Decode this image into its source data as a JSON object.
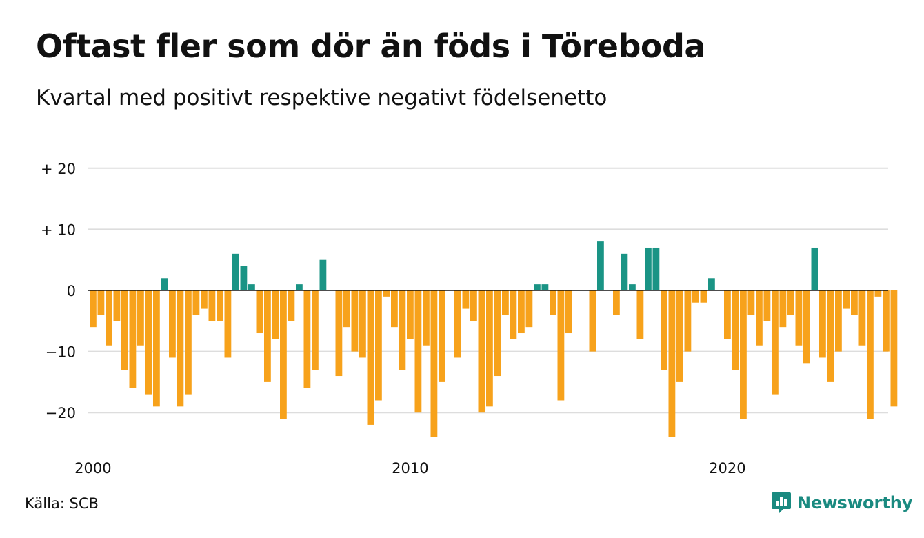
{
  "title": "Oftast fler som dör än föds i Töreboda",
  "subtitle": "Kvartal med positivt respektive negativt födelsenetto",
  "source": "Källa: SCB",
  "brand": "Newsworthy",
  "colors": {
    "positive": "#1a9485",
    "negative": "#f7a21b",
    "grid": "#dddddd",
    "zero": "#111111"
  },
  "chart_data": {
    "type": "bar",
    "x_start": "2000 Q1",
    "x_tick_labels": [
      "2000",
      "2010",
      "2020"
    ],
    "y_tick_labels": [
      "+ 20",
      "+ 10",
      "0",
      "−10",
      "−20"
    ],
    "y_ticks": [
      20,
      10,
      0,
      -10,
      -20
    ],
    "ylim": [
      -26,
      22
    ],
    "grid": true,
    "values": [
      -6,
      -4,
      -9,
      -5,
      -13,
      -16,
      -9,
      -17,
      -19,
      2,
      -11,
      -19,
      -17,
      -4,
      -3,
      -5,
      -5,
      -11,
      6,
      4,
      1,
      -7,
      -15,
      -8,
      -21,
      -5,
      1,
      -16,
      -13,
      5,
      0,
      -14,
      -6,
      -10,
      -11,
      -22,
      -18,
      -1,
      -6,
      -13,
      -8,
      -20,
      -9,
      -24,
      -15,
      0,
      -11,
      -3,
      -5,
      -20,
      -19,
      -14,
      -4,
      -8,
      -7,
      -6,
      1,
      1,
      -4,
      -18,
      -7,
      0,
      0,
      -10,
      8,
      0,
      -4,
      6,
      1,
      -8,
      7,
      7,
      -13,
      -24,
      -15,
      -10,
      -2,
      -2,
      2,
      0,
      -8,
      -13,
      -21,
      -4,
      -9,
      -5,
      -17,
      -6,
      -4,
      -9,
      -12,
      7,
      -11,
      -15,
      -10,
      -3,
      -4,
      -9,
      -21,
      -1,
      -10,
      -19
    ]
  }
}
